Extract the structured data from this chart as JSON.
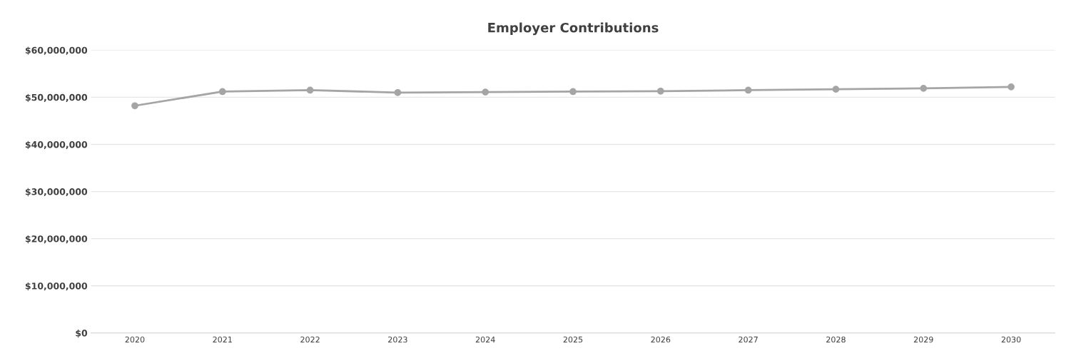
{
  "chart_data": {
    "type": "line",
    "title": "Employer Contributions",
    "categories": [
      "2020",
      "2021",
      "2022",
      "2023",
      "2024",
      "2025",
      "2026",
      "2027",
      "2028",
      "2029",
      "2030"
    ],
    "series": [
      {
        "color": "#a5a5a5",
        "values": [
          48200000,
          51200000,
          51500000,
          51000000,
          51100000,
          51200000,
          51300000,
          51500000,
          51700000,
          51900000,
          52200000
        ]
      }
    ],
    "ylim": [
      0,
      60000000
    ],
    "yticks": [
      {
        "value": 0,
        "label": "$0"
      },
      {
        "value": 10000000,
        "label": "$10,000,000"
      },
      {
        "value": 20000000,
        "label": "$20,000,000"
      },
      {
        "value": 30000000,
        "label": "$30,000,000"
      },
      {
        "value": 40000000,
        "label": "$40,000,000"
      },
      {
        "value": 50000000,
        "label": "$50,000,000"
      },
      {
        "value": 60000000,
        "label": "$60,000,000"
      }
    ],
    "grid": "y",
    "marker": "circle",
    "line_style": "solid"
  }
}
